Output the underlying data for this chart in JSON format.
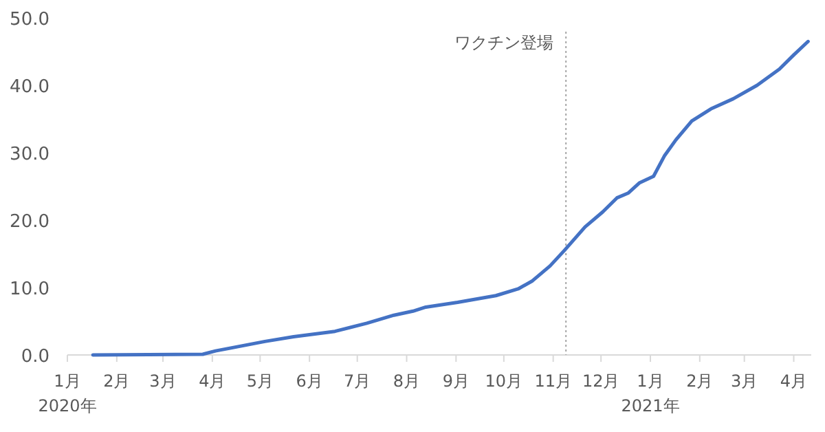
{
  "chart_data": {
    "type": "line",
    "x": [
      "2020-01-17",
      "2020-03-26",
      "2020-04-03",
      "2020-05-04",
      "2020-05-22",
      "2020-06-17",
      "2020-07-07",
      "2020-07-24",
      "2020-08-05",
      "2020-08-13",
      "2020-09-02",
      "2020-09-26",
      "2020-10-10",
      "2020-10-19",
      "2020-10-30",
      "2020-11-08",
      "2020-11-21",
      "2020-12-02",
      "2020-12-11",
      "2020-12-18",
      "2020-12-25",
      "2021-01-03",
      "2021-01-10",
      "2021-01-17",
      "2021-01-27",
      "2021-02-08",
      "2021-02-22",
      "2021-03-09",
      "2021-03-23",
      "2021-04-01",
      "2021-04-10"
    ],
    "series": [
      {
        "color": "#4472c4",
        "values": [
          0,
          0.1,
          0.6,
          2.0,
          2.7,
          3.5,
          4.7,
          5.9,
          6.5,
          7.1,
          7.8,
          8.8,
          9.8,
          11.0,
          13.2,
          15.5,
          19.0,
          21.2,
          23.3,
          24.0,
          25.5,
          26.5,
          29.6,
          31.9,
          34.7,
          36.5,
          38.0,
          40.0,
          42.4,
          44.5,
          46.5
        ]
      }
    ],
    "xlim": [
      "2020-01-01",
      "2021-04-12"
    ],
    "xticks": [
      {
        "value": "2020-01-01",
        "label": "1月\n2020年"
      },
      {
        "value": "2020-02-01",
        "label": "2月"
      },
      {
        "value": "2020-03-01",
        "label": "3月"
      },
      {
        "value": "2020-04-01",
        "label": "4月"
      },
      {
        "value": "2020-05-01",
        "label": "5月"
      },
      {
        "value": "2020-06-01",
        "label": "6月"
      },
      {
        "value": "2020-07-01",
        "label": "7月"
      },
      {
        "value": "2020-08-01",
        "label": "8月"
      },
      {
        "value": "2020-09-01",
        "label": "9月"
      },
      {
        "value": "2020-10-01",
        "label": "10月"
      },
      {
        "value": "2020-11-01",
        "label": "11月"
      },
      {
        "value": "2020-12-01",
        "label": "12月"
      },
      {
        "value": "2021-01-01",
        "label": "1月\n2021年"
      },
      {
        "value": "2021-02-01",
        "label": "2月"
      },
      {
        "value": "2021-03-01",
        "label": "3月"
      },
      {
        "value": "2021-04-01",
        "label": "4月"
      }
    ],
    "ylim": [
      0,
      50
    ],
    "yticks": [
      {
        "value": 0,
        "label": "0.0"
      },
      {
        "value": 10,
        "label": "10.0"
      },
      {
        "value": 20,
        "label": "20.0"
      },
      {
        "value": 30,
        "label": "30.0"
      },
      {
        "value": 40,
        "label": "40.0"
      },
      {
        "value": 50,
        "label": "50.0"
      }
    ],
    "grid": false,
    "line_style": "solid",
    "ref_lines": [
      {
        "axis": "x",
        "value": "2020-11-09",
        "label": "ワクチン登場",
        "color": "#a6a6a6",
        "line_style": "dotted"
      }
    ]
  }
}
